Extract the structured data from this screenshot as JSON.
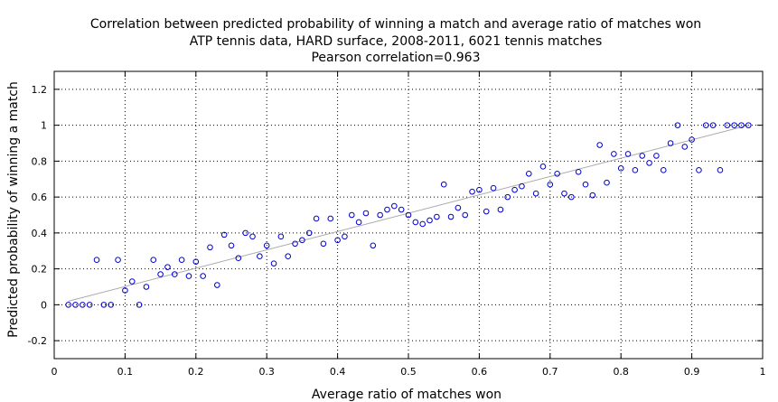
{
  "chart_data": {
    "type": "scatter",
    "title": [
      "Correlation between predicted probability of winning a match and average ratio of matches won",
      "ATP tennis data, HARD surface, 2008-2011, 6021 tennis matches",
      "Pearson correlation=0.963"
    ],
    "xlabel": "Average ratio of matches won",
    "ylabel": "Predicted probability of winning a match",
    "xlim": [
      0,
      1
    ],
    "ylim": [
      -0.3,
      1.3
    ],
    "xticks": [
      0,
      0.1,
      0.2,
      0.3,
      0.4,
      0.5,
      0.6,
      0.7,
      0.8,
      0.9,
      1
    ],
    "xtick_labels": [
      "0",
      "0.1",
      "0.2",
      "0.3",
      "0.4",
      "0.5",
      "0.6",
      "0.7",
      "0.8",
      "0.9",
      "1"
    ],
    "yticks": [
      -0.2,
      0,
      0.2,
      0.4,
      0.6,
      0.8,
      1,
      1.2
    ],
    "ytick_labels": [
      "-0.2",
      "0",
      "0.2",
      "0.4",
      "0.6",
      "0.8",
      "1",
      "1.2"
    ],
    "grid": true,
    "marker_color": "#0000cc",
    "fit_line": {
      "x": [
        0.02,
        0.98
      ],
      "y": [
        0.02,
        1.0
      ],
      "color": "#aaaaaa"
    },
    "points": [
      [
        0.02,
        0.0
      ],
      [
        0.03,
        0.0
      ],
      [
        0.04,
        0.0
      ],
      [
        0.05,
        0.0
      ],
      [
        0.06,
        0.25
      ],
      [
        0.07,
        0.0
      ],
      [
        0.08,
        0.0
      ],
      [
        0.09,
        0.25
      ],
      [
        0.1,
        0.08
      ],
      [
        0.11,
        0.13
      ],
      [
        0.12,
        0.0
      ],
      [
        0.13,
        0.1
      ],
      [
        0.14,
        0.25
      ],
      [
        0.15,
        0.17
      ],
      [
        0.16,
        0.21
      ],
      [
        0.17,
        0.17
      ],
      [
        0.18,
        0.25
      ],
      [
        0.19,
        0.16
      ],
      [
        0.2,
        0.24
      ],
      [
        0.21,
        0.16
      ],
      [
        0.22,
        0.32
      ],
      [
        0.23,
        0.11
      ],
      [
        0.24,
        0.39
      ],
      [
        0.25,
        0.33
      ],
      [
        0.26,
        0.26
      ],
      [
        0.27,
        0.4
      ],
      [
        0.28,
        0.38
      ],
      [
        0.29,
        0.27
      ],
      [
        0.3,
        0.33
      ],
      [
        0.31,
        0.23
      ],
      [
        0.32,
        0.38
      ],
      [
        0.33,
        0.27
      ],
      [
        0.34,
        0.34
      ],
      [
        0.35,
        0.36
      ],
      [
        0.36,
        0.4
      ],
      [
        0.37,
        0.48
      ],
      [
        0.38,
        0.34
      ],
      [
        0.39,
        0.48
      ],
      [
        0.4,
        0.36
      ],
      [
        0.41,
        0.38
      ],
      [
        0.42,
        0.5
      ],
      [
        0.43,
        0.46
      ],
      [
        0.44,
        0.51
      ],
      [
        0.45,
        0.33
      ],
      [
        0.46,
        0.5
      ],
      [
        0.47,
        0.53
      ],
      [
        0.48,
        0.55
      ],
      [
        0.49,
        0.53
      ],
      [
        0.5,
        0.5
      ],
      [
        0.51,
        0.46
      ],
      [
        0.52,
        0.45
      ],
      [
        0.53,
        0.47
      ],
      [
        0.54,
        0.49
      ],
      [
        0.55,
        0.67
      ],
      [
        0.56,
        0.49
      ],
      [
        0.57,
        0.54
      ],
      [
        0.58,
        0.5
      ],
      [
        0.59,
        0.63
      ],
      [
        0.6,
        0.64
      ],
      [
        0.61,
        0.52
      ],
      [
        0.62,
        0.65
      ],
      [
        0.63,
        0.53
      ],
      [
        0.64,
        0.6
      ],
      [
        0.65,
        0.64
      ],
      [
        0.66,
        0.66
      ],
      [
        0.67,
        0.73
      ],
      [
        0.68,
        0.62
      ],
      [
        0.69,
        0.77
      ],
      [
        0.7,
        0.67
      ],
      [
        0.71,
        0.73
      ],
      [
        0.72,
        0.62
      ],
      [
        0.73,
        0.6
      ],
      [
        0.74,
        0.74
      ],
      [
        0.75,
        0.67
      ],
      [
        0.76,
        0.61
      ],
      [
        0.77,
        0.89
      ],
      [
        0.78,
        0.68
      ],
      [
        0.79,
        0.84
      ],
      [
        0.8,
        0.76
      ],
      [
        0.81,
        0.84
      ],
      [
        0.82,
        0.75
      ],
      [
        0.83,
        0.83
      ],
      [
        0.84,
        0.79
      ],
      [
        0.85,
        0.83
      ],
      [
        0.86,
        0.75
      ],
      [
        0.87,
        0.9
      ],
      [
        0.88,
        1.0
      ],
      [
        0.89,
        0.88
      ],
      [
        0.9,
        0.92
      ],
      [
        0.91,
        0.75
      ],
      [
        0.92,
        1.0
      ],
      [
        0.93,
        1.0
      ],
      [
        0.94,
        0.75
      ],
      [
        0.95,
        1.0
      ],
      [
        0.96,
        1.0
      ],
      [
        0.97,
        1.0
      ],
      [
        0.98,
        1.0
      ]
    ]
  }
}
